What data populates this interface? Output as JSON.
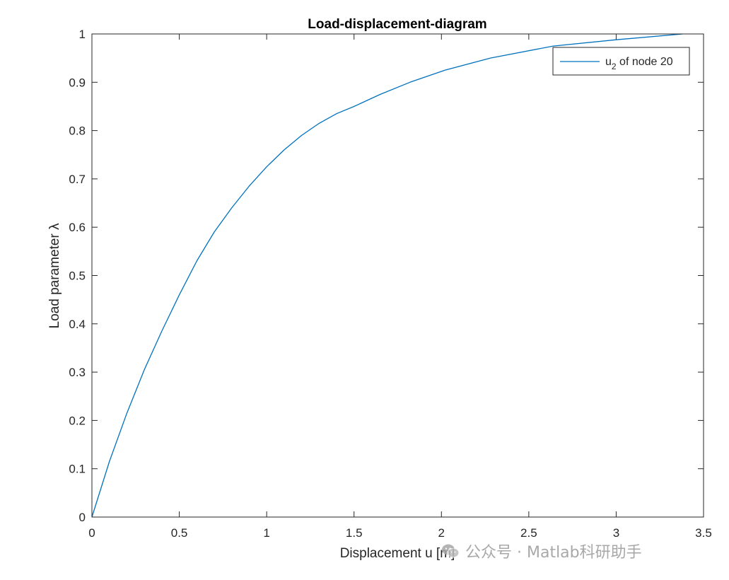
{
  "chart_data": {
    "type": "line",
    "title": "Load-displacement-diagram",
    "xlabel": "Displacement u [m]",
    "ylabel": "Load parameter λ",
    "xlim": [
      0,
      3.5
    ],
    "ylim": [
      0,
      1
    ],
    "x_ticks": [
      0,
      0.5,
      1,
      1.5,
      2,
      2.5,
      3,
      3.5
    ],
    "y_ticks": [
      0,
      0.1,
      0.2,
      0.3,
      0.4,
      0.5,
      0.6,
      0.7,
      0.8,
      0.9,
      1
    ],
    "grid": false,
    "legend_position": "top-right",
    "series": [
      {
        "name_base": "u",
        "name_sub": "2",
        "name_rest": " of node 20",
        "color": "#0072bd",
        "x": [
          0,
          0.1,
          0.2,
          0.3,
          0.4,
          0.5,
          0.6,
          0.7,
          0.8,
          0.9,
          1.0,
          1.1,
          1.2,
          1.3,
          1.4,
          1.5,
          1.65,
          1.82,
          2.02,
          2.28,
          2.64,
          3.0,
          3.38
        ],
        "y": [
          0,
          0.115,
          0.215,
          0.305,
          0.385,
          0.46,
          0.53,
          0.59,
          0.64,
          0.685,
          0.725,
          0.76,
          0.79,
          0.815,
          0.835,
          0.85,
          0.875,
          0.9,
          0.925,
          0.95,
          0.975,
          0.988,
          1.0
        ]
      }
    ]
  },
  "watermark": {
    "text": "公众号 · Matlab科研助手",
    "icon": "wechat-icon"
  }
}
